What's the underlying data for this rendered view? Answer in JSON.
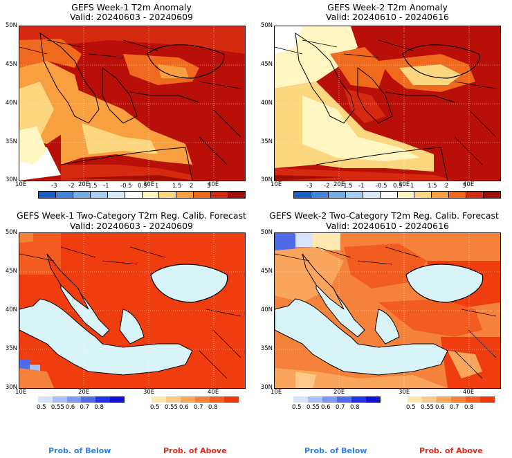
{
  "panels": [
    {
      "title1": "GEFS Week-1 T2m Anomaly",
      "title2": "Valid: 20240603 - 20240609"
    },
    {
      "title1": "GEFS Week-2 T2m Anomaly",
      "title2": "Valid: 20240610 - 20240616"
    },
    {
      "title1": "GEFS Week-1 Two-Category T2m Reg. Calib. Forecast",
      "title2": "Valid: 20240603 - 20240609"
    },
    {
      "title1": "GEFS Week-2 Two-Category T2m Reg. Calib. Forecast",
      "title2": "Valid: 20240610 - 20240616"
    }
  ],
  "lat_labels": [
    "50N",
    "45N",
    "40N",
    "35N",
    "30N"
  ],
  "lon_labels": [
    "10E",
    "20E",
    "30E",
    "40E"
  ],
  "anomaly_colorbar": {
    "ticks": [
      "-3",
      "-2",
      "-1.5",
      "-1",
      "-0.5",
      "0.5",
      "1",
      "1.5",
      "2",
      "3"
    ],
    "colors": [
      "#1c5fc4",
      "#3f86d8",
      "#73aee8",
      "#a7cdf2",
      "#d6ebfa",
      "#ffffff",
      "#fff6c2",
      "#fdd680",
      "#f8a040",
      "#f06a1e",
      "#d62a10",
      "#a00e08"
    ]
  },
  "prob_below": {
    "label": "Prob. of Below",
    "ticks": [
      "0.5",
      "0.55",
      "0.6",
      "0.7",
      "0.8"
    ],
    "colors": [
      "#d9e3fb",
      "#a9befa",
      "#7d97f3",
      "#4f6bea",
      "#2233e4",
      "#1010d0"
    ],
    "label_color": "#2f7fe0"
  },
  "prob_above": {
    "label": "Prob. of Above",
    "ticks": [
      "0.5",
      "0.55",
      "0.6",
      "0.7",
      "0.8"
    ],
    "colors": [
      "#ffe9b0",
      "#fdc988",
      "#f9a55e",
      "#f5823a",
      "#f25c1e",
      "#e93a0e"
    ],
    "label_color": "#e02a1a"
  }
}
